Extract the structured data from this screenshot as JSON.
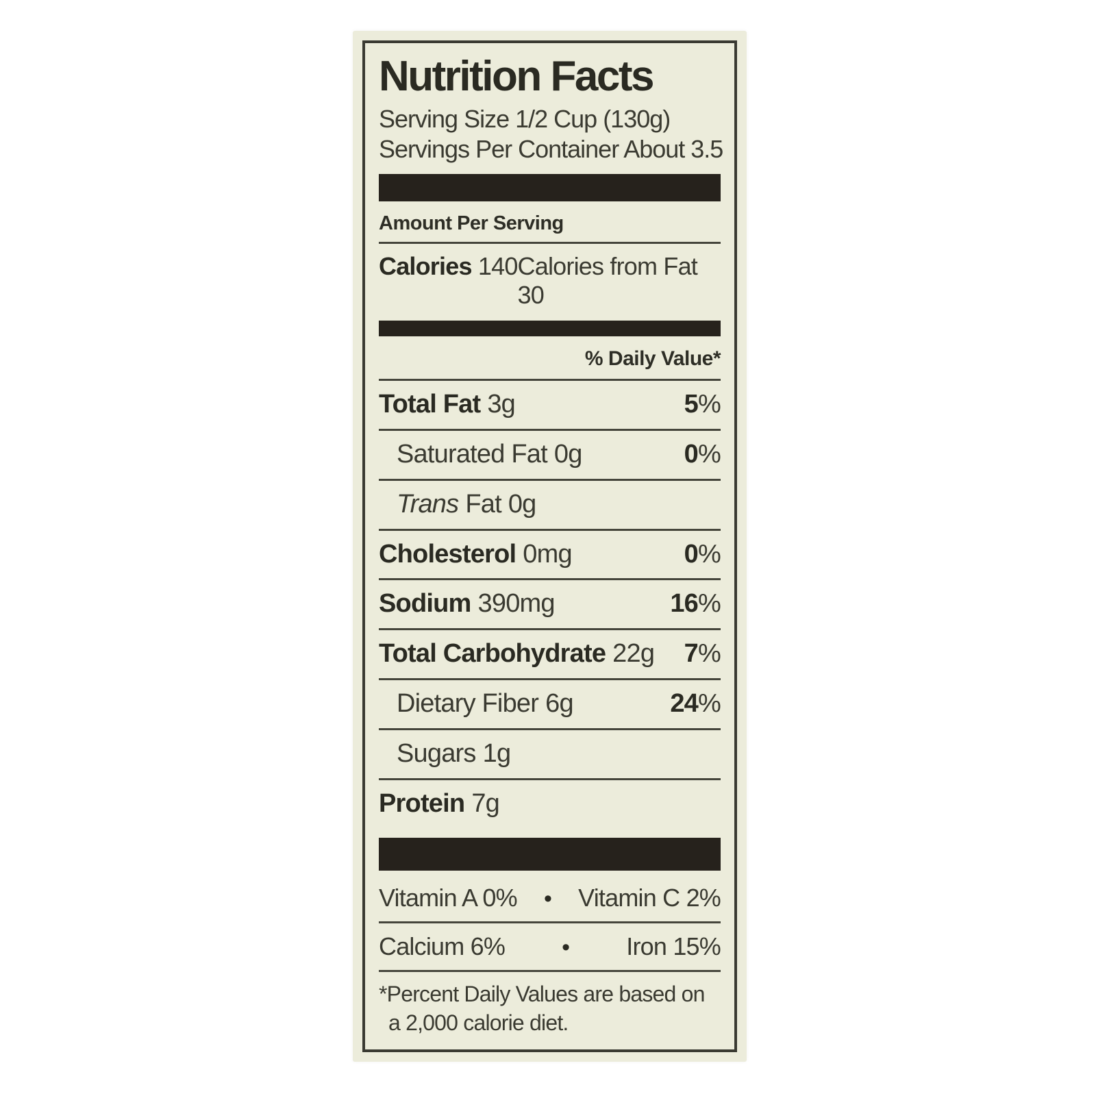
{
  "label": {
    "title": "Nutrition Facts",
    "serving_size": "Serving Size 1/2 Cup (130g)",
    "servings_per_container": "Servings Per Container About 3.5",
    "amount_per_serving": "Amount Per Serving",
    "calories_label": "Calories",
    "calories_value": "140",
    "calories_from_fat": "Calories from Fat 30",
    "daily_value_header": "% Daily Value*",
    "percent_sign": "%",
    "bullet": "•",
    "nutrients": [
      {
        "italic": "",
        "name": "Total Fat",
        "amount": "3g",
        "dv": "5"
      },
      {
        "italic": "",
        "name": "Saturated Fat",
        "amount": "0g",
        "dv": "0"
      },
      {
        "italic": "Trans",
        "name": "Fat",
        "amount": "0g",
        "dv": ""
      },
      {
        "italic": "",
        "name": "Cholesterol",
        "amount": "0mg",
        "dv": "0"
      },
      {
        "italic": "",
        "name": "Sodium",
        "amount": "390mg",
        "dv": "16"
      },
      {
        "italic": "",
        "name": "Total Carbohydrate",
        "amount": "22g",
        "dv": "7"
      },
      {
        "italic": "",
        "name": "Dietary Fiber",
        "amount": "6g",
        "dv": "24"
      },
      {
        "italic": "",
        "name": "Sugars",
        "amount": "1g",
        "dv": ""
      },
      {
        "italic": "",
        "name": "Protein",
        "amount": "7g",
        "dv": ""
      }
    ],
    "vitamins": [
      {
        "left": "Vitamin A 0%",
        "right": "Vitamin C 2%"
      },
      {
        "left": "Calcium 6%",
        "right": "Iron 15%"
      }
    ],
    "footnote": "*Percent Daily Values are based on a 2,000 calorie diet.",
    "colors": {
      "label_bg": "#ececdb",
      "text": "#32322a",
      "bar": "#26221c"
    }
  }
}
